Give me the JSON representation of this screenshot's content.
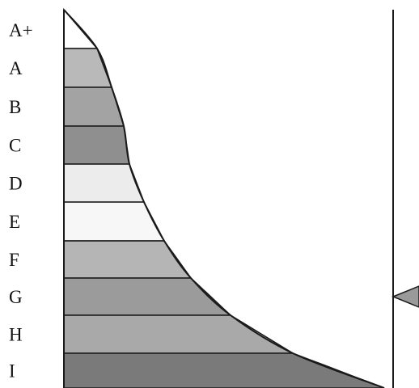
{
  "scale": {
    "labels": [
      "A+",
      "A",
      "B",
      "C",
      "D",
      "E",
      "F",
      "G",
      "H",
      "I"
    ],
    "bands": [
      {
        "name": "A+",
        "fill": "#ffffff"
      },
      {
        "name": "A",
        "fill": "#b9b9b9"
      },
      {
        "name": "B",
        "fill": "#a3a3a3"
      },
      {
        "name": "C",
        "fill": "#8f8f8f"
      },
      {
        "name": "D",
        "fill": "#ececec"
      },
      {
        "name": "E",
        "fill": "#f7f7f7"
      },
      {
        "name": "F",
        "fill": "#b5b5b5"
      },
      {
        "name": "G",
        "fill": "#9b9b9b"
      },
      {
        "name": "H",
        "fill": "#a9a9a9"
      },
      {
        "name": "I",
        "fill": "#7a7a7a"
      }
    ],
    "pointer": {
      "band": "G",
      "fill": "#9a9a9a"
    }
  }
}
